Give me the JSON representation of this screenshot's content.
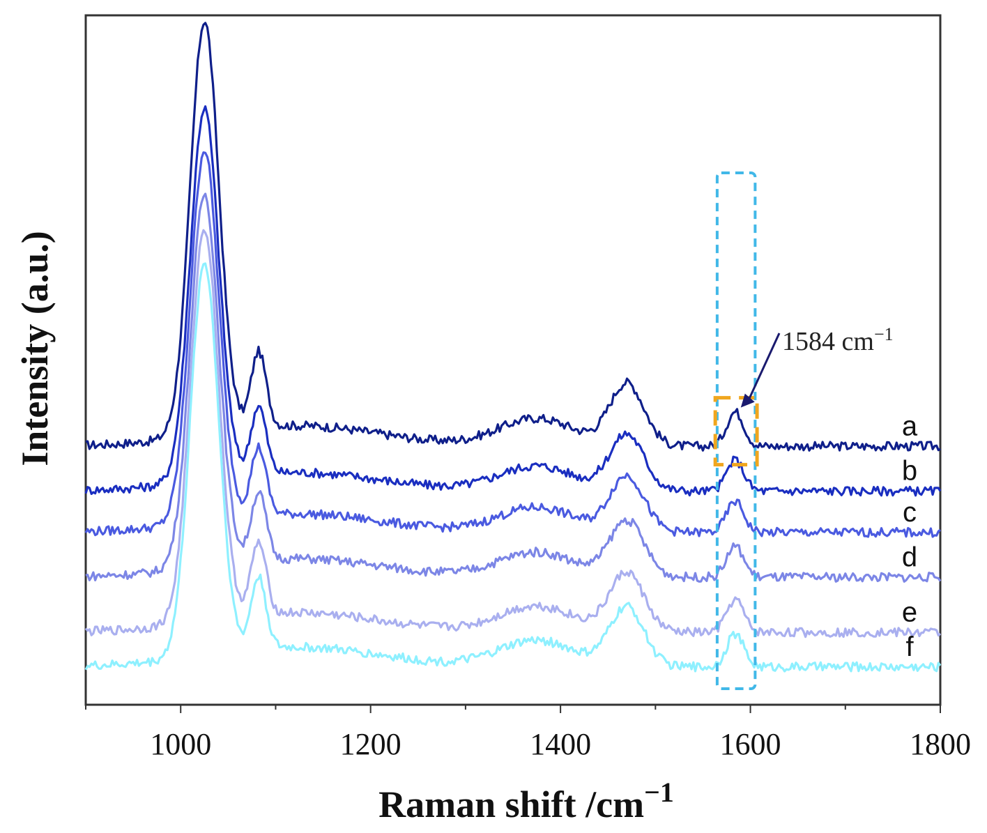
{
  "chart_data": {
    "type": "line",
    "title": "",
    "xlabel": "Raman shift /cm",
    "xlabel_superscript": "−1",
    "ylabel": "Intensity (a.u.)",
    "xlim": [
      900,
      1800
    ],
    "ylim": [
      0,
      100
    ],
    "xticks": [
      1000,
      1200,
      1400,
      1600,
      1800
    ],
    "yticks": [],
    "grid": false,
    "series": [
      {
        "name": "a",
        "color": "#0f1f8a",
        "baseline": 37.5,
        "scale": 1.0
      },
      {
        "name": "b",
        "color": "#1a2ec0",
        "baseline": 31.0,
        "scale": 0.9
      },
      {
        "name": "c",
        "color": "#4a5ae0",
        "baseline": 25.0,
        "scale": 0.9
      },
      {
        "name": "d",
        "color": "#7c86e6",
        "baseline": 18.5,
        "scale": 0.9
      },
      {
        "name": "e",
        "color": "#a9afef",
        "baseline": 10.5,
        "scale": 0.95
      },
      {
        "name": "f",
        "color": "#8ef0ff",
        "baseline": 5.5,
        "scale": 0.95
      }
    ],
    "peaks": [
      {
        "center": 1025,
        "width": 15,
        "height": 60
      },
      {
        "center": 1082,
        "width": 8,
        "height": 11
      },
      {
        "center": 1375,
        "width": 40,
        "height": 4
      },
      {
        "center": 1470,
        "width": 18,
        "height": 9
      },
      {
        "center": 1584,
        "width": 9,
        "height": 5
      }
    ],
    "annotation": {
      "text": "1584 cm",
      "superscript": "−1",
      "x": 1584
    },
    "highlight_region": {
      "x": [
        1565,
        1605
      ],
      "color": "#41b8e8"
    },
    "highlight_peak": {
      "x": [
        1563,
        1607
      ],
      "color": "#f0a61e"
    }
  }
}
